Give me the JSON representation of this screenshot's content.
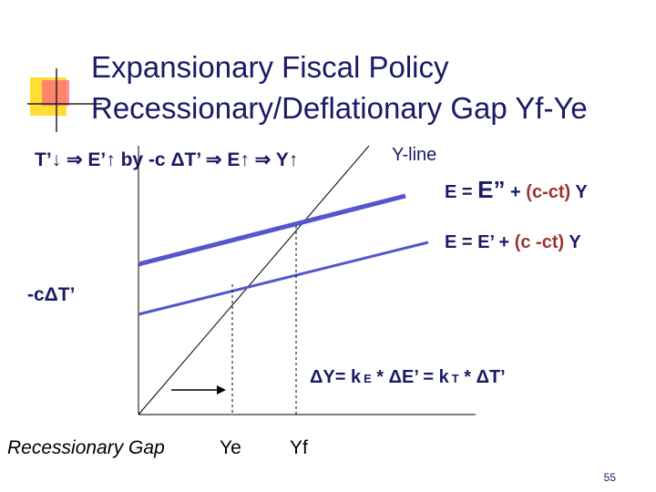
{
  "header": {
    "title_line1": "Expansionary Fiscal Policy",
    "title_line2": "Recessionary/Deflationary Gap Yf-Ye"
  },
  "chain": "T’↓ ⇒ E’↑ by -c ΔT’ ⇒ E↑ ⇒ Y↑",
  "line_label": "Y-line",
  "equation_upper": {
    "lhs": "E = ",
    "term": "E”",
    "plus": " + ",
    "coef": "(c-ct)",
    "var": " Y"
  },
  "equation_lower": {
    "lhs": "E = E’ + ",
    "coef": "(c -ct)",
    "var": " Y"
  },
  "shift_label": "-cΔT’",
  "multiplier": {
    "part1": "ΔY= k",
    "sub1": "E",
    "part2": " * ΔE’ = k",
    "sub2": "T",
    "part3": " * ΔT’"
  },
  "gap_label": "Recessionary Gap",
  "ye": "Ye",
  "yf": "Yf",
  "page_number": "55"
}
